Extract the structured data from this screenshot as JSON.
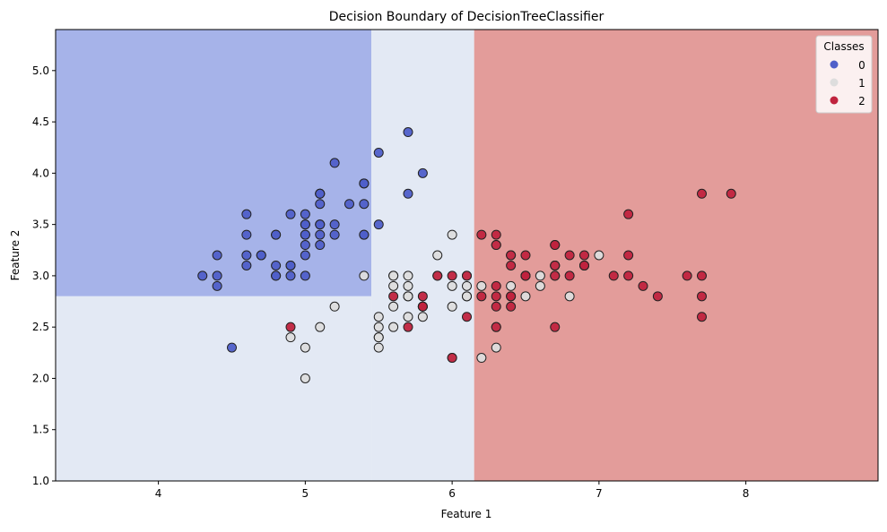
{
  "chart_data": {
    "type": "scatter",
    "title": "Decision Boundary of DecisionTreeClassifier",
    "xlabel": "Feature 1",
    "ylabel": "Feature 2",
    "xlim": [
      3.3,
      8.9
    ],
    "ylim": [
      1.0,
      5.4
    ],
    "xticks": [
      4,
      5,
      6,
      7,
      8
    ],
    "yticks": [
      "1.0",
      "1.5",
      "2.0",
      "2.5",
      "3.0",
      "3.5",
      "4.0",
      "4.5",
      "5.0"
    ],
    "grid": false,
    "legend": {
      "title": "Classes",
      "placement": "top-right",
      "entries": [
        "0",
        "1",
        "2"
      ]
    },
    "colors": {
      "0": "#4f5fc9",
      "1": "#dddddd",
      "2": "#c0233e"
    },
    "region_colors": {
      "0": "#a6b3e9",
      "1": "#e3e9f4",
      "2": "#e39c9a"
    },
    "regions": [
      {
        "class": "0",
        "x": [
          3.3,
          5.45
        ],
        "y": [
          2.8,
          5.4
        ]
      },
      {
        "class": "1",
        "x": [
          3.3,
          5.45
        ],
        "y": [
          1.0,
          2.8
        ]
      },
      {
        "class": "1",
        "x": [
          5.45,
          6.15
        ],
        "y": [
          1.0,
          5.4
        ]
      },
      {
        "class": "2",
        "x": [
          6.15,
          8.9
        ],
        "y": [
          1.0,
          5.4
        ]
      }
    ],
    "series": [
      {
        "name": "0",
        "points": [
          [
            5.1,
            3.5
          ],
          [
            4.9,
            3.0
          ],
          [
            4.7,
            3.2
          ],
          [
            4.6,
            3.1
          ],
          [
            5.0,
            3.6
          ],
          [
            5.4,
            3.9
          ],
          [
            4.6,
            3.4
          ],
          [
            5.0,
            3.4
          ],
          [
            4.4,
            2.9
          ],
          [
            4.9,
            3.1
          ],
          [
            5.4,
            3.7
          ],
          [
            4.8,
            3.4
          ],
          [
            4.8,
            3.0
          ],
          [
            4.3,
            3.0
          ],
          [
            5.8,
            4.0
          ],
          [
            5.7,
            4.4
          ],
          [
            5.4,
            3.9
          ],
          [
            5.1,
            3.5
          ],
          [
            5.7,
            3.8
          ],
          [
            5.1,
            3.8
          ],
          [
            5.4,
            3.4
          ],
          [
            5.1,
            3.7
          ],
          [
            4.6,
            3.6
          ],
          [
            5.1,
            3.3
          ],
          [
            4.8,
            3.4
          ],
          [
            5.0,
            3.0
          ],
          [
            5.0,
            3.4
          ],
          [
            5.2,
            3.5
          ],
          [
            5.2,
            3.4
          ],
          [
            4.7,
            3.2
          ],
          [
            4.8,
            3.1
          ],
          [
            5.4,
            3.4
          ],
          [
            5.2,
            4.1
          ],
          [
            5.5,
            4.2
          ],
          [
            4.9,
            3.1
          ],
          [
            5.0,
            3.2
          ],
          [
            5.5,
            3.5
          ],
          [
            4.9,
            3.6
          ],
          [
            4.4,
            3.0
          ],
          [
            5.1,
            3.4
          ],
          [
            5.0,
            3.5
          ],
          [
            4.5,
            2.3
          ],
          [
            4.4,
            3.2
          ],
          [
            5.0,
            3.5
          ],
          [
            5.1,
            3.8
          ],
          [
            4.8,
            3.0
          ],
          [
            5.1,
            3.8
          ],
          [
            4.6,
            3.2
          ],
          [
            5.3,
            3.7
          ],
          [
            5.0,
            3.3
          ]
        ]
      },
      {
        "name": "1",
        "points": [
          [
            7.0,
            3.2
          ],
          [
            6.4,
            3.2
          ],
          [
            6.9,
            3.1
          ],
          [
            5.5,
            2.3
          ],
          [
            6.5,
            2.8
          ],
          [
            5.7,
            2.8
          ],
          [
            6.3,
            3.3
          ],
          [
            4.9,
            2.4
          ],
          [
            6.6,
            2.9
          ],
          [
            5.2,
            2.7
          ],
          [
            5.0,
            2.0
          ],
          [
            5.9,
            3.0
          ],
          [
            6.0,
            2.2
          ],
          [
            6.1,
            2.9
          ],
          [
            5.6,
            2.9
          ],
          [
            6.7,
            3.1
          ],
          [
            5.6,
            3.0
          ],
          [
            5.8,
            2.7
          ],
          [
            6.2,
            2.2
          ],
          [
            5.6,
            2.5
          ],
          [
            5.9,
            3.2
          ],
          [
            6.1,
            2.8
          ],
          [
            6.3,
            2.5
          ],
          [
            6.1,
            2.8
          ],
          [
            6.4,
            2.9
          ],
          [
            6.6,
            3.0
          ],
          [
            6.8,
            2.8
          ],
          [
            6.7,
            3.0
          ],
          [
            6.0,
            2.9
          ],
          [
            5.7,
            2.6
          ],
          [
            5.5,
            2.4
          ],
          [
            5.5,
            2.4
          ],
          [
            5.8,
            2.7
          ],
          [
            6.0,
            2.7
          ],
          [
            5.4,
            3.0
          ],
          [
            6.0,
            3.4
          ],
          [
            6.7,
            3.1
          ],
          [
            6.3,
            2.3
          ],
          [
            5.6,
            3.0
          ],
          [
            5.5,
            2.5
          ],
          [
            5.5,
            2.6
          ],
          [
            6.1,
            3.0
          ],
          [
            5.8,
            2.6
          ],
          [
            5.0,
            2.3
          ],
          [
            5.6,
            2.7
          ],
          [
            5.7,
            3.0
          ],
          [
            5.7,
            2.9
          ],
          [
            6.2,
            2.9
          ],
          [
            5.1,
            2.5
          ],
          [
            5.7,
            2.8
          ]
        ]
      },
      {
        "name": "2",
        "points": [
          [
            6.3,
            3.3
          ],
          [
            5.8,
            2.7
          ],
          [
            7.1,
            3.0
          ],
          [
            6.3,
            2.9
          ],
          [
            6.5,
            3.0
          ],
          [
            7.6,
            3.0
          ],
          [
            4.9,
            2.5
          ],
          [
            7.3,
            2.9
          ],
          [
            6.7,
            2.5
          ],
          [
            7.2,
            3.6
          ],
          [
            6.5,
            3.2
          ],
          [
            6.4,
            2.7
          ],
          [
            6.8,
            3.0
          ],
          [
            5.7,
            2.5
          ],
          [
            5.8,
            2.8
          ],
          [
            6.4,
            3.2
          ],
          [
            6.5,
            3.0
          ],
          [
            7.7,
            3.8
          ],
          [
            7.7,
            2.6
          ],
          [
            6.0,
            2.2
          ],
          [
            6.9,
            3.2
          ],
          [
            5.6,
            2.8
          ],
          [
            7.7,
            2.8
          ],
          [
            6.3,
            2.7
          ],
          [
            6.7,
            3.3
          ],
          [
            7.2,
            3.2
          ],
          [
            6.2,
            2.8
          ],
          [
            6.1,
            3.0
          ],
          [
            6.4,
            2.8
          ],
          [
            7.2,
            3.0
          ],
          [
            7.4,
            2.8
          ],
          [
            7.9,
            3.8
          ],
          [
            6.4,
            2.8
          ],
          [
            6.3,
            2.8
          ],
          [
            6.1,
            2.6
          ],
          [
            7.7,
            3.0
          ],
          [
            6.3,
            3.4
          ],
          [
            6.4,
            3.1
          ],
          [
            6.0,
            3.0
          ],
          [
            6.9,
            3.1
          ],
          [
            6.7,
            3.1
          ],
          [
            6.9,
            3.1
          ],
          [
            5.8,
            2.7
          ],
          [
            6.8,
            3.2
          ],
          [
            6.7,
            3.3
          ],
          [
            6.7,
            3.0
          ],
          [
            6.3,
            2.5
          ],
          [
            6.5,
            3.0
          ],
          [
            6.2,
            3.4
          ],
          [
            5.9,
            3.0
          ]
        ]
      }
    ]
  }
}
